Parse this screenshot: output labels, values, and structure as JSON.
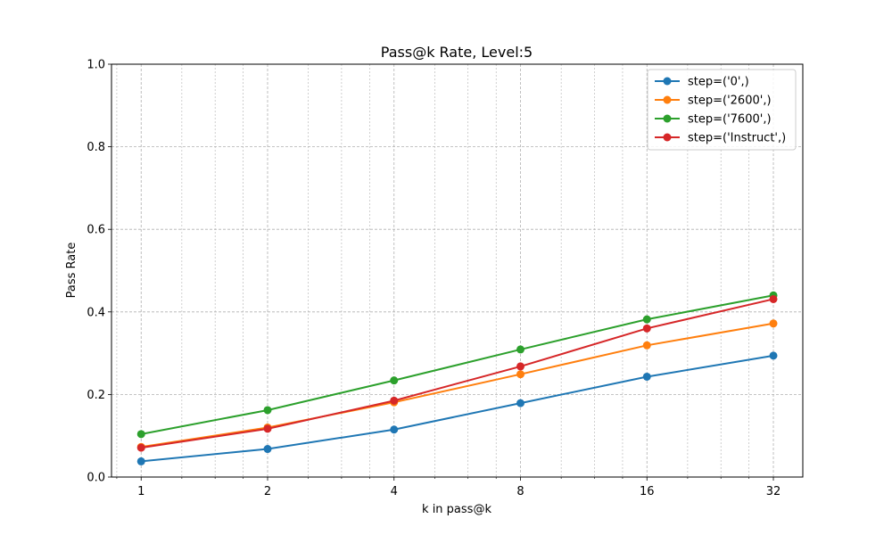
{
  "chart_data": {
    "type": "line",
    "title": "Pass@k Rate, Level:5",
    "xlabel": "k in pass@k",
    "ylabel": "Pass Rate",
    "x_scale": "log2",
    "x": [
      1,
      2,
      4,
      8,
      16,
      32
    ],
    "x_tick_labels": [
      "1",
      "2",
      "4",
      "8",
      "16",
      "32"
    ],
    "y_ticks": [
      0.0,
      0.2,
      0.4,
      0.6,
      0.8,
      1.0
    ],
    "y_tick_labels": [
      "0.0",
      "0.2",
      "0.4",
      "0.6",
      "0.8",
      "1.0"
    ],
    "xlim": [
      0.85,
      37.6
    ],
    "ylim": [
      0.0,
      1.0
    ],
    "grid": true,
    "legend_position": "top-right",
    "series": [
      {
        "name": "step=('0',)",
        "color": "#1f77b4",
        "values": [
          0.038,
          0.068,
          0.115,
          0.179,
          0.243,
          0.294
        ]
      },
      {
        "name": "step=('2600',)",
        "color": "#ff7f0e",
        "values": [
          0.073,
          0.12,
          0.181,
          0.249,
          0.319,
          0.372
        ]
      },
      {
        "name": "step=('7600',)",
        "color": "#2ca02c",
        "values": [
          0.104,
          0.162,
          0.234,
          0.309,
          0.382,
          0.44
        ]
      },
      {
        "name": "step=('Instruct',)",
        "color": "#d62728",
        "values": [
          0.071,
          0.117,
          0.185,
          0.268,
          0.36,
          0.431
        ]
      }
    ]
  }
}
